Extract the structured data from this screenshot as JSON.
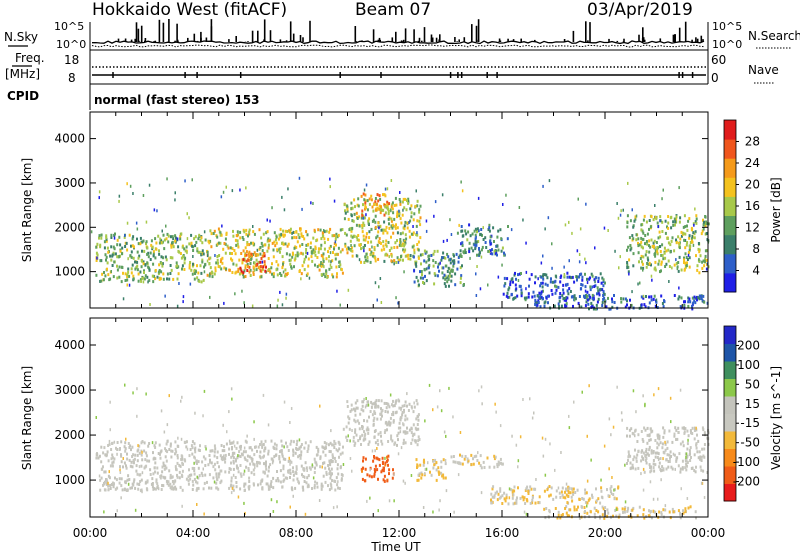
{
  "header": {
    "radar": "Hokkaido West (fitACF)",
    "beam": "Beam 07",
    "date": "03/Apr/2019"
  },
  "top_strip": {
    "nsky_label": "N.Sky",
    "nsky_ticks": [
      "10^5",
      "10^0"
    ],
    "nsearch_label": "N.Search",
    "nsearch_ticks": [
      "10^5",
      "10^0"
    ],
    "freq_label_1": "Freq.",
    "freq_label_2": "[MHz]",
    "freq_ticks": [
      "18",
      "8"
    ],
    "nave_label": "Nave",
    "nave_ticks": [
      "60",
      "0"
    ],
    "cpid_label": "CPID",
    "cpid_value": "normal (fast stereo) 153"
  },
  "colors": {
    "power_scale": [
      "#1f1fe6",
      "#2e5fc9",
      "#3b7f6a",
      "#5e9f5e",
      "#a8c94a",
      "#f4c21e",
      "#f59a1a",
      "#f0561d",
      "#e01c1c"
    ],
    "velocity_scale": [
      "#e81c1c",
      "#f05c18",
      "#f78a1a",
      "#f2b93a",
      "#c8c8c0",
      "#c4c4bc",
      "#8cc84a",
      "#3f8f5e",
      "#1e55a8",
      "#2328c8"
    ]
  },
  "chart_data": [
    {
      "type": "heatmap",
      "panel": "power",
      "ylabel": "Slant Range [km]",
      "y_ticks": [
        "1000",
        "2000",
        "3000",
        "4000"
      ],
      "ylim": [
        180,
        4600
      ],
      "colorbar_label": "Power [dB]",
      "colorbar_ticks": [
        "4",
        "8",
        "12",
        "16",
        "20",
        "24",
        "28"
      ],
      "colorbar_range": [
        0,
        32
      ],
      "x_ticks": [
        "00:00",
        "04:00",
        "08:00",
        "12:00",
        "16:00",
        "20:00",
        "00:00"
      ],
      "xlim_hours": [
        0,
        24
      ],
      "regions": [
        {
          "t": [
            0.2,
            4.5
          ],
          "r": [
            800,
            1900
          ],
          "power": 14
        },
        {
          "t": [
            4.5,
            9.8
          ],
          "r": [
            900,
            2000
          ],
          "power": 17
        },
        {
          "t": [
            5.8,
            6.8
          ],
          "r": [
            1000,
            1500
          ],
          "power": 26
        },
        {
          "t": [
            9.8,
            12.8
          ],
          "r": [
            1200,
            2700
          ],
          "power": 16
        },
        {
          "t": [
            10.5,
            11.6
          ],
          "r": [
            2300,
            2800
          ],
          "power": 22
        },
        {
          "t": [
            12.5,
            14.5
          ],
          "r": [
            700,
            1500
          ],
          "power": 10
        },
        {
          "t": [
            14.2,
            16.2
          ],
          "r": [
            1400,
            2100
          ],
          "power": 9
        },
        {
          "t": [
            16.0,
            20.0
          ],
          "r": [
            400,
            1000
          ],
          "power": 6
        },
        {
          "t": [
            20.8,
            24.0
          ],
          "r": [
            1000,
            2300
          ],
          "power": 15
        },
        {
          "t": [
            17.2,
            24.0
          ],
          "r": [
            180,
            500
          ],
          "power": 6
        }
      ]
    },
    {
      "type": "heatmap",
      "panel": "velocity",
      "ylabel": "Slant Range [km]",
      "y_ticks": [
        "1000",
        "2000",
        "3000",
        "4000"
      ],
      "ylim": [
        180,
        4600
      ],
      "colorbar_label": "Velocity [m s^-1]",
      "colorbar_ticks": [
        "-200",
        "-100",
        "-50",
        "-15",
        "15",
        "50",
        "100",
        "200"
      ],
      "colorbar_range": [
        -250,
        250
      ],
      "x_ticks": [
        "00:00",
        "04:00",
        "08:00",
        "12:00",
        "16:00",
        "20:00",
        "00:00"
      ],
      "xlabel": "Time UT",
      "xlim_hours": [
        0,
        24
      ],
      "regions": [
        {
          "t": [
            0.2,
            9.8
          ],
          "r": [
            800,
            1900
          ],
          "velocity": 0
        },
        {
          "t": [
            9.8,
            12.8
          ],
          "r": [
            1800,
            2800
          ],
          "velocity": 0
        },
        {
          "t": [
            10.5,
            11.8
          ],
          "r": [
            1000,
            1600
          ],
          "velocity": -170
        },
        {
          "t": [
            12.6,
            13.8
          ],
          "r": [
            1000,
            1500
          ],
          "velocity": -60
        },
        {
          "t": [
            14.0,
            16.0
          ],
          "r": [
            1300,
            1600
          ],
          "velocity": -40
        },
        {
          "t": [
            15.5,
            20.5
          ],
          "r": [
            500,
            900
          ],
          "velocity": -50
        },
        {
          "t": [
            17.5,
            23.5
          ],
          "r": [
            180,
            450
          ],
          "velocity": -45
        },
        {
          "t": [
            20.8,
            24.0
          ],
          "r": [
            1200,
            2200
          ],
          "velocity": 0
        }
      ]
    }
  ]
}
